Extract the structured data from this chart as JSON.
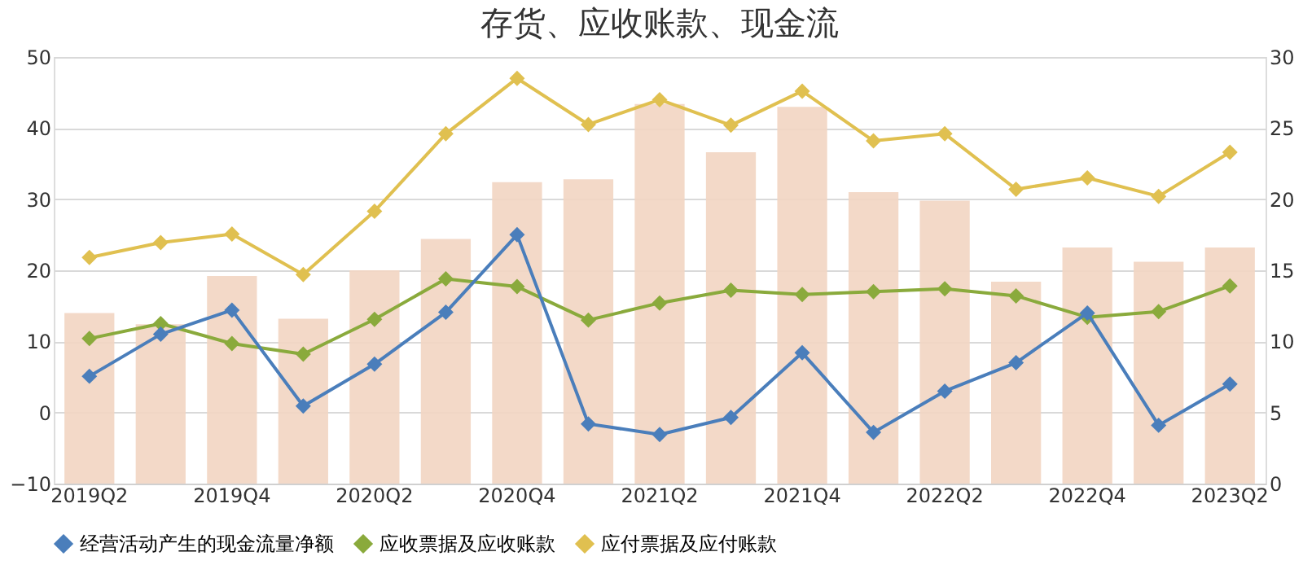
{
  "chart_data": {
    "type": "line",
    "title": "存货、应收账款、现金流",
    "categories": [
      "2019Q2",
      null,
      "2019Q4",
      null,
      "2020Q2",
      null,
      "2020Q4",
      null,
      "2021Q2",
      null,
      "2021Q4",
      null,
      "2022Q2",
      null,
      "2022Q4",
      null,
      "2023Q2"
    ],
    "series": [
      {
        "type": "bar",
        "axis": "y2",
        "color": "#f2d5c2",
        "values": [
          12,
          11.2,
          14.6,
          11.6,
          15,
          17.2,
          21.2,
          21.4,
          26.7,
          23.3,
          26.5,
          20.5,
          19.9,
          14.2,
          16.6,
          15.6,
          16.6
        ]
      },
      {
        "name": "经营活动产生的现金流量净额",
        "color": "#4a7ebb",
        "values": [
          5.1,
          11,
          14.4,
          0.9,
          6.8,
          14.1,
          25,
          -1.6,
          -3.1,
          -0.7,
          8.4,
          -2.8,
          3,
          7,
          14,
          -1.8,
          4
        ]
      },
      {
        "name": "应收票据及应收账款",
        "color": "#8aaa3c",
        "values": [
          10.4,
          12.5,
          9.7,
          8.2,
          13.1,
          18.8,
          17.7,
          13,
          15.4,
          17.2,
          16.6,
          17,
          17.4,
          16.4,
          13.4,
          14.2,
          17.8
        ]
      },
      {
        "name": "应付票据及应付账款",
        "color": "#e0c050",
        "values": [
          21.8,
          23.9,
          25.1,
          19.4,
          28.3,
          39.2,
          47,
          40.5,
          44,
          40.4,
          45.2,
          38.2,
          39.2,
          31.4,
          33,
          30.4,
          36.6
        ]
      }
    ],
    "ylim": [
      -10,
      50
    ],
    "yticks": [
      -10,
      0,
      10,
      20,
      30,
      40,
      50
    ],
    "y2lim": [
      0,
      30
    ],
    "y2ticks": [
      0,
      5,
      10,
      15,
      20,
      25,
      30
    ],
    "grid": "y",
    "legend": "bottom",
    "marker": "diamond",
    "line_style": "solid"
  }
}
